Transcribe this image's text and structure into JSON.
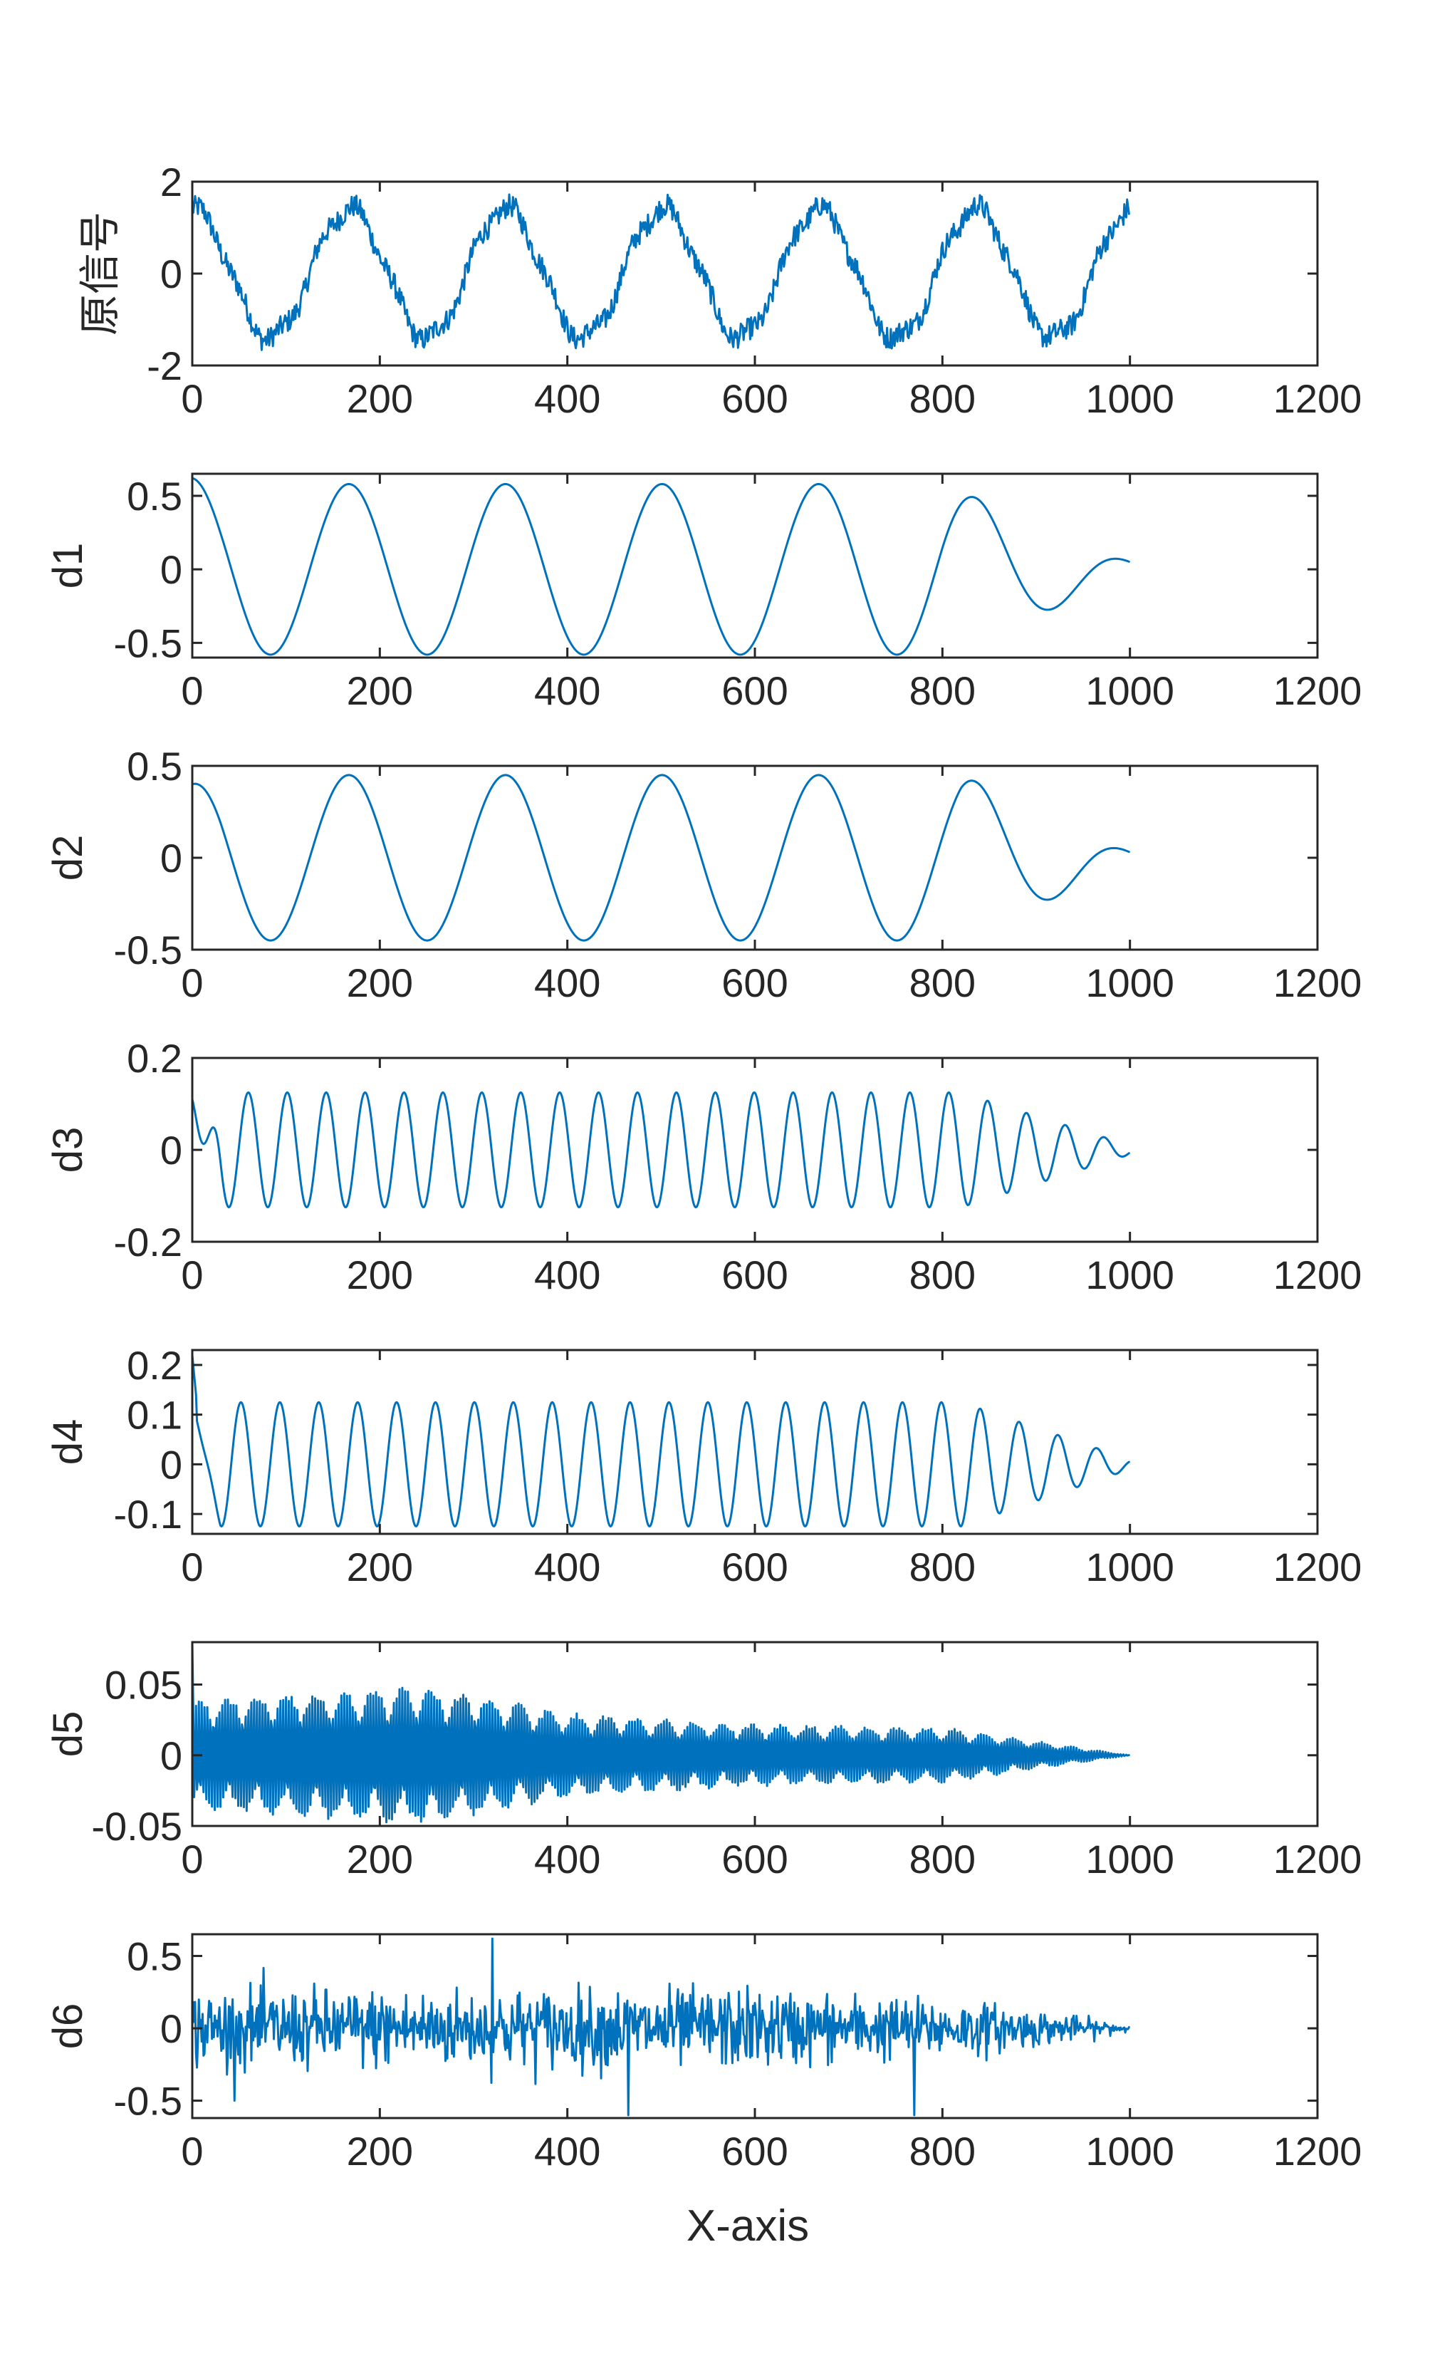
{
  "chart_data": {
    "type": "line",
    "xlabel": "X-axis",
    "xlim": [
      0,
      1200
    ],
    "xticks": [
      0,
      200,
      400,
      600,
      800,
      1000,
      1200
    ],
    "line_color": "#0072BD",
    "grid": false,
    "n_points": 1000,
    "subplots": [
      {
        "ylabel": "原信号",
        "ylim": [
          -2,
          2
        ],
        "yticks": [
          -2,
          0,
          2
        ],
        "yticklabels": [
          "-2",
          "0",
          "2"
        ],
        "signal": {
          "description": "sum of components plus noise",
          "components": [
            {
              "amplitude": 0.55,
              "period": 167,
              "phase": 1.57
            },
            {
              "amplitude": 0.35,
              "period": 167,
              "phase": 1.57
            },
            {
              "amplitude": 0.12,
              "period": 41.5,
              "phase": 0.0
            }
          ],
          "noise_amplitude": 0.35,
          "offset": 0.0
        }
      },
      {
        "ylabel": "d1",
        "ylim": [
          -0.6,
          0.65
        ],
        "yticks": [
          -0.5,
          0,
          0.5
        ],
        "yticklabels": [
          "-0.5",
          "0",
          "0.5"
        ],
        "signal": {
          "components": [
            {
              "amplitude": 0.58,
              "period": 167,
              "phase": 1.57
            }
          ],
          "start_amplitude": 0.62,
          "decay_start": 800,
          "end_amplitude": 0.05,
          "noise_amplitude": 0
        }
      },
      {
        "ylabel": "d2",
        "ylim": [
          -0.5,
          0.5
        ],
        "yticks": [
          -0.5,
          0,
          0.5
        ],
        "yticklabels": [
          "-0.5",
          "0",
          "0.5"
        ],
        "signal": {
          "components": [
            {
              "amplitude": 0.45,
              "period": 167,
              "phase": 1.57
            }
          ],
          "start_amplitude": 0.4,
          "decay_start": 820,
          "end_amplitude": 0.03,
          "noise_amplitude": 0
        }
      },
      {
        "ylabel": "d3",
        "ylim": [
          -0.2,
          0.2
        ],
        "yticks": [
          -0.2,
          0,
          0.2
        ],
        "yticklabels": [
          "-0.2",
          "0",
          "0.2"
        ],
        "signal": {
          "components": [
            {
              "amplitude": 0.125,
              "period": 41.5,
              "phase": -1.2
            }
          ],
          "start_amplitude": 0.11,
          "decay_start": 820,
          "end_amplitude": 0.01,
          "noise_amplitude": 0
        }
      },
      {
        "ylabel": "d4",
        "ylim": [
          -0.14,
          0.23
        ],
        "yticks": [
          -0.1,
          0,
          0.1,
          0.2
        ],
        "yticklabels": [
          "-0.1",
          "0",
          "0.1",
          "0.2"
        ],
        "signal": {
          "components": [
            {
              "amplitude": 0.125,
              "period": 41.5,
              "phase": 0.0
            }
          ],
          "start_amplitude": 0.12,
          "spike_start": 0.22,
          "decay_start": 820,
          "end_amplitude": 0.01,
          "noise_amplitude": 0
        }
      },
      {
        "ylabel": "d5",
        "ylim": [
          -0.05,
          0.08
        ],
        "yticks": [
          -0.05,
          0,
          0.05
        ],
        "yticklabels": [
          "-0.05",
          "0",
          "0.05"
        ],
        "signal": {
          "description": "dense high-frequency oscillation with envelope",
          "envelope_points": [
            [
              0,
              0.04
            ],
            [
              250,
              0.05
            ],
            [
              400,
              0.03
            ],
            [
              600,
              0.022
            ],
            [
              800,
              0.02
            ],
            [
              1000,
              0.0
            ]
          ],
          "period": 3.1,
          "spike_start": 0.08,
          "noise_amplitude": 0
        }
      },
      {
        "ylabel": "d6",
        "ylim": [
          -0.62,
          0.65
        ],
        "yticks": [
          -0.5,
          0,
          0.5
        ],
        "yticklabels": [
          "-0.5",
          "0",
          "0.5"
        ],
        "signal": {
          "description": "noise-like residual",
          "envelope_points": [
            [
              0,
              0.22
            ],
            [
              600,
              0.22
            ],
            [
              850,
              0.14
            ],
            [
              1000,
              0.02
            ]
          ],
          "noise_amplitude": 1,
          "spikes": [
            [
              320,
              0.62
            ],
            [
              465,
              -0.6
            ],
            [
              770,
              -0.6
            ]
          ]
        }
      }
    ]
  }
}
